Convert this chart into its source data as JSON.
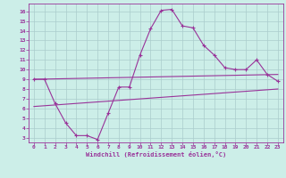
{
  "xlabel": "Windchill (Refroidissement éolien,°C)",
  "background_color": "#cceee8",
  "grid_color": "#aacccc",
  "line_color": "#993399",
  "xlim": [
    -0.5,
    23.5
  ],
  "ylim": [
    2.5,
    16.8
  ],
  "xticks": [
    0,
    1,
    2,
    3,
    4,
    5,
    6,
    7,
    8,
    9,
    10,
    11,
    12,
    13,
    14,
    15,
    16,
    17,
    18,
    19,
    20,
    21,
    22,
    23
  ],
  "yticks": [
    3,
    4,
    5,
    6,
    7,
    8,
    9,
    10,
    11,
    12,
    13,
    14,
    15,
    16
  ],
  "series1_x": [
    0,
    1,
    2,
    3,
    4,
    5,
    6,
    7,
    8,
    9,
    10,
    11,
    12,
    13,
    14,
    15,
    16,
    17,
    18,
    19,
    20,
    21,
    22,
    23
  ],
  "series1_y": [
    9.0,
    9.0,
    6.5,
    4.5,
    3.2,
    3.2,
    2.8,
    5.5,
    8.2,
    8.2,
    11.5,
    14.2,
    16.1,
    16.2,
    14.5,
    14.3,
    12.5,
    11.5,
    10.2,
    10.0,
    10.0,
    11.0,
    9.5,
    8.8
  ],
  "series2_x": [
    0,
    23
  ],
  "series2_y": [
    9.0,
    9.5
  ],
  "series3_x": [
    0,
    23
  ],
  "series3_y": [
    6.2,
    8.0
  ],
  "marker": "+",
  "markersize": 3,
  "linewidth": 0.8
}
